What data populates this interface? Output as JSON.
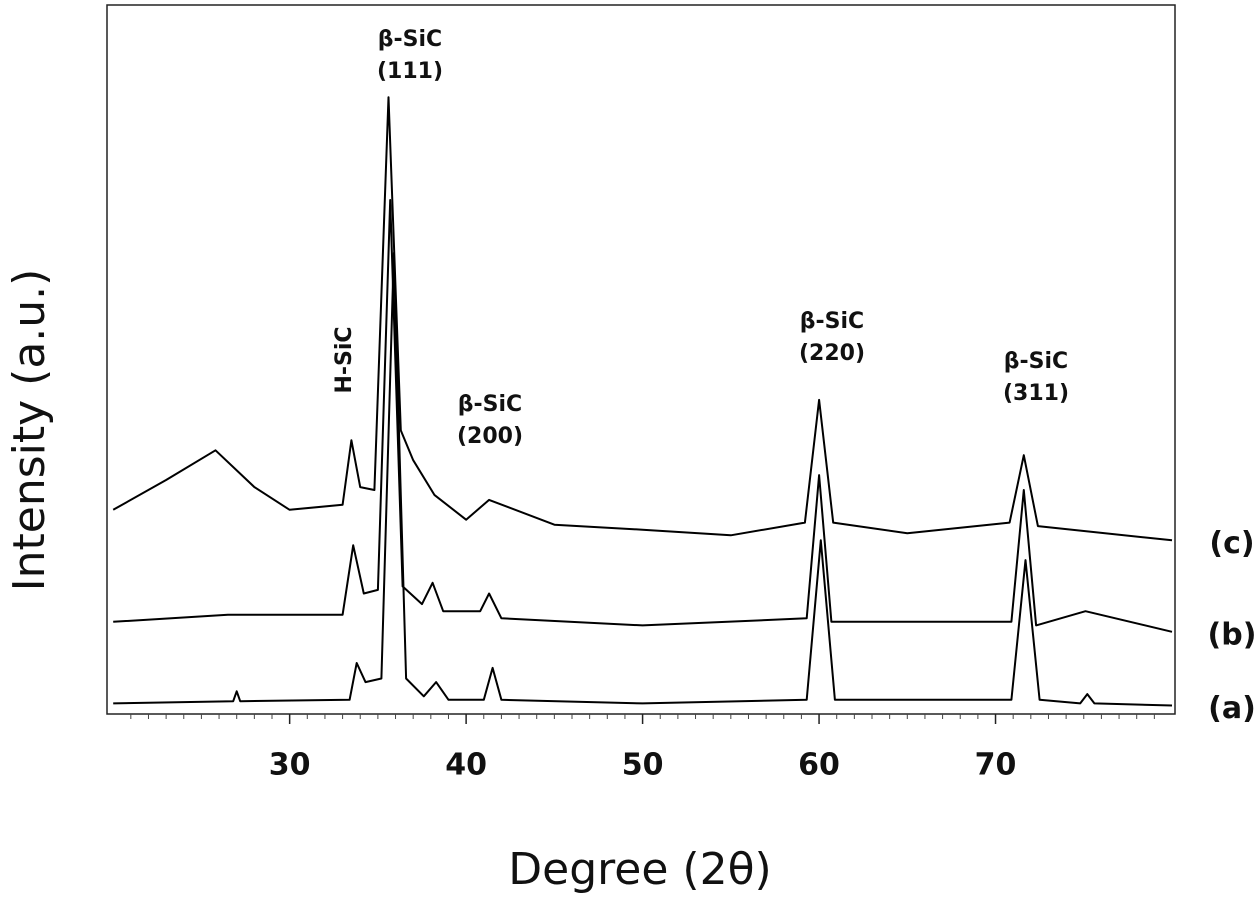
{
  "chart_data": {
    "type": "line",
    "xlabel": "Degree (2θ)",
    "ylabel": "Intensity (a.u.)",
    "xlim": [
      19.65,
      80
    ],
    "ylim": [
      0,
      100
    ],
    "xticks": [
      30,
      40,
      50,
      60,
      70
    ],
    "xminorticks": [
      21,
      22,
      23,
      24,
      25,
      26,
      27,
      28,
      29,
      31,
      32,
      33,
      34,
      35,
      36,
      37,
      38,
      39,
      41,
      42,
      43,
      44,
      45,
      46,
      47,
      48,
      49,
      51,
      52,
      53,
      54,
      55,
      56,
      57,
      58,
      59,
      61,
      62,
      63,
      64,
      65,
      66,
      67,
      68,
      69,
      71,
      72,
      73,
      74,
      75,
      76,
      77,
      78,
      79
    ],
    "grid": false,
    "annotations": [
      {
        "lines": [
          "β-SiC",
          "(111)"
        ]
      },
      {
        "lines": [
          "H-SiC"
        ]
      },
      {
        "lines": [
          "β-SiC",
          "(200)"
        ]
      },
      {
        "lines": [
          "β-SiC",
          "(220)"
        ]
      },
      {
        "lines": [
          "β-SiC",
          "(311)"
        ]
      }
    ],
    "series": [
      {
        "name": "(a)",
        "color": "#000000",
        "x": [
          20,
          26.8,
          27,
          27.2,
          33.4,
          33.8,
          34.3,
          35.2,
          35.9,
          36.6,
          37.6,
          38.3,
          39,
          41,
          41.5,
          42,
          50,
          59.3,
          60.1,
          60.9,
          70.9,
          71.7,
          72.5,
          74.8,
          75.2,
          75.6,
          80
        ],
        "values": [
          1.5,
          1.8,
          3.2,
          1.8,
          2,
          7.2,
          4.5,
          5,
          65,
          5,
          2.5,
          4.5,
          2,
          2,
          6.5,
          2,
          1.5,
          2,
          24.5,
          2,
          2,
          21.7,
          2,
          1.5,
          2.8,
          1.5,
          1.2
        ]
      },
      {
        "name": "(b)",
        "color": "#000000",
        "x": [
          20,
          26.5,
          33,
          33.6,
          34.2,
          35,
          35.7,
          36.4,
          37.5,
          38.1,
          38.7,
          40.8,
          41.3,
          42,
          50,
          59.3,
          60,
          60.7,
          70.9,
          71.6,
          72.3,
          75.1,
          80
        ],
        "values": [
          13,
          14,
          14,
          23.8,
          17,
          17.5,
          72.5,
          18,
          15.5,
          18.5,
          14.5,
          14.5,
          17,
          13.5,
          12.5,
          13.5,
          33.7,
          13,
          13,
          31.6,
          12.5,
          14.5,
          11.6
        ]
      },
      {
        "name": "(c)",
        "color": "#000000",
        "x": [
          20,
          23,
          25.8,
          28,
          30,
          33,
          33.5,
          34,
          34.8,
          35.6,
          36.3,
          37,
          38.2,
          40,
          41.3,
          45,
          50,
          55,
          59.2,
          60,
          60.8,
          65,
          70.8,
          71.6,
          72.4,
          80
        ],
        "values": [
          28.8,
          33,
          37.2,
          32,
          28.8,
          29.5,
          38.6,
          32,
          31.6,
          87,
          40,
          35.8,
          30.9,
          27.4,
          30.2,
          26.7,
          26,
          25.2,
          27,
          44.3,
          27,
          25.5,
          27,
          36.5,
          26.5,
          24.5
        ]
      }
    ]
  }
}
